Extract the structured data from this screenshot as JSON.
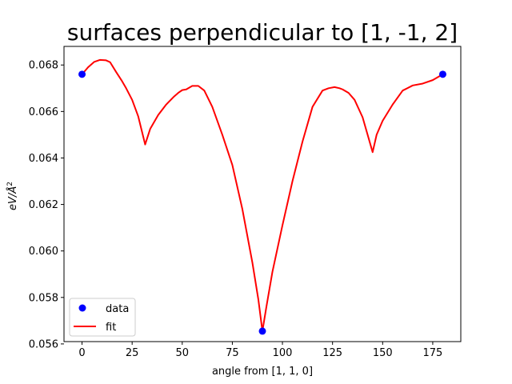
{
  "chart_data": {
    "type": "line",
    "title": "surfaces perpendicular to [1, -1, 2]",
    "xlabel": "angle from [1, 1, 0]",
    "ylabel_base": "eV/Å",
    "ylabel_exp": "2",
    "xlim": [
      -9,
      189
    ],
    "ylim": [
      0.0561,
      0.0688
    ],
    "xticks": [
      0,
      25,
      50,
      75,
      100,
      125,
      150,
      175
    ],
    "yticks": [
      0.056,
      0.058,
      0.06,
      0.062,
      0.064,
      0.066,
      0.068
    ],
    "ytick_labels": [
      "0.056",
      "0.058",
      "0.060",
      "0.062",
      "0.064",
      "0.066",
      "0.068"
    ],
    "legend_position": "lower-left",
    "series": [
      {
        "name": "data",
        "style": "markers",
        "color": "#0000ff",
        "points": [
          [
            0,
            0.0676
          ],
          [
            90,
            0.05655
          ],
          [
            180,
            0.0676
          ]
        ]
      },
      {
        "name": "fit",
        "style": "line",
        "color": "#ff0000",
        "points": [
          [
            0,
            0.0676
          ],
          [
            3,
            0.0679
          ],
          [
            6,
            0.06813
          ],
          [
            9,
            0.06822
          ],
          [
            12,
            0.0682
          ],
          [
            14,
            0.06812
          ],
          [
            17,
            0.0677
          ],
          [
            20,
            0.0673
          ],
          [
            22,
            0.067
          ],
          [
            25,
            0.0665
          ],
          [
            28,
            0.0658
          ],
          [
            31.5,
            0.06458
          ],
          [
            34,
            0.06525
          ],
          [
            38,
            0.06585
          ],
          [
            42,
            0.0663
          ],
          [
            46,
            0.06665
          ],
          [
            48,
            0.0668
          ],
          [
            50,
            0.06692
          ],
          [
            52,
            0.06695
          ],
          [
            55,
            0.0671
          ],
          [
            58,
            0.0671
          ],
          [
            61,
            0.0669
          ],
          [
            65,
            0.0662
          ],
          [
            70,
            0.065
          ],
          [
            75,
            0.0637
          ],
          [
            80,
            0.0618
          ],
          [
            85,
            0.0595
          ],
          [
            88,
            0.0579
          ],
          [
            90,
            0.05655
          ],
          [
            92,
            0.0576
          ],
          [
            95,
            0.0591
          ],
          [
            100,
            0.0611
          ],
          [
            105,
            0.063
          ],
          [
            110,
            0.0647
          ],
          [
            115,
            0.0662
          ],
          [
            120,
            0.0669
          ],
          [
            123,
            0.067
          ],
          [
            126,
            0.06705
          ],
          [
            128.5,
            0.067
          ],
          [
            130,
            0.06695
          ],
          [
            133,
            0.0668
          ],
          [
            136,
            0.0665
          ],
          [
            140,
            0.06575
          ],
          [
            145,
            0.06425
          ],
          [
            147,
            0.065
          ],
          [
            150,
            0.0656
          ],
          [
            155,
            0.0663
          ],
          [
            160,
            0.0669
          ],
          [
            165,
            0.06712
          ],
          [
            170,
            0.0672
          ],
          [
            175,
            0.06735
          ],
          [
            180,
            0.0676
          ]
        ]
      }
    ]
  }
}
